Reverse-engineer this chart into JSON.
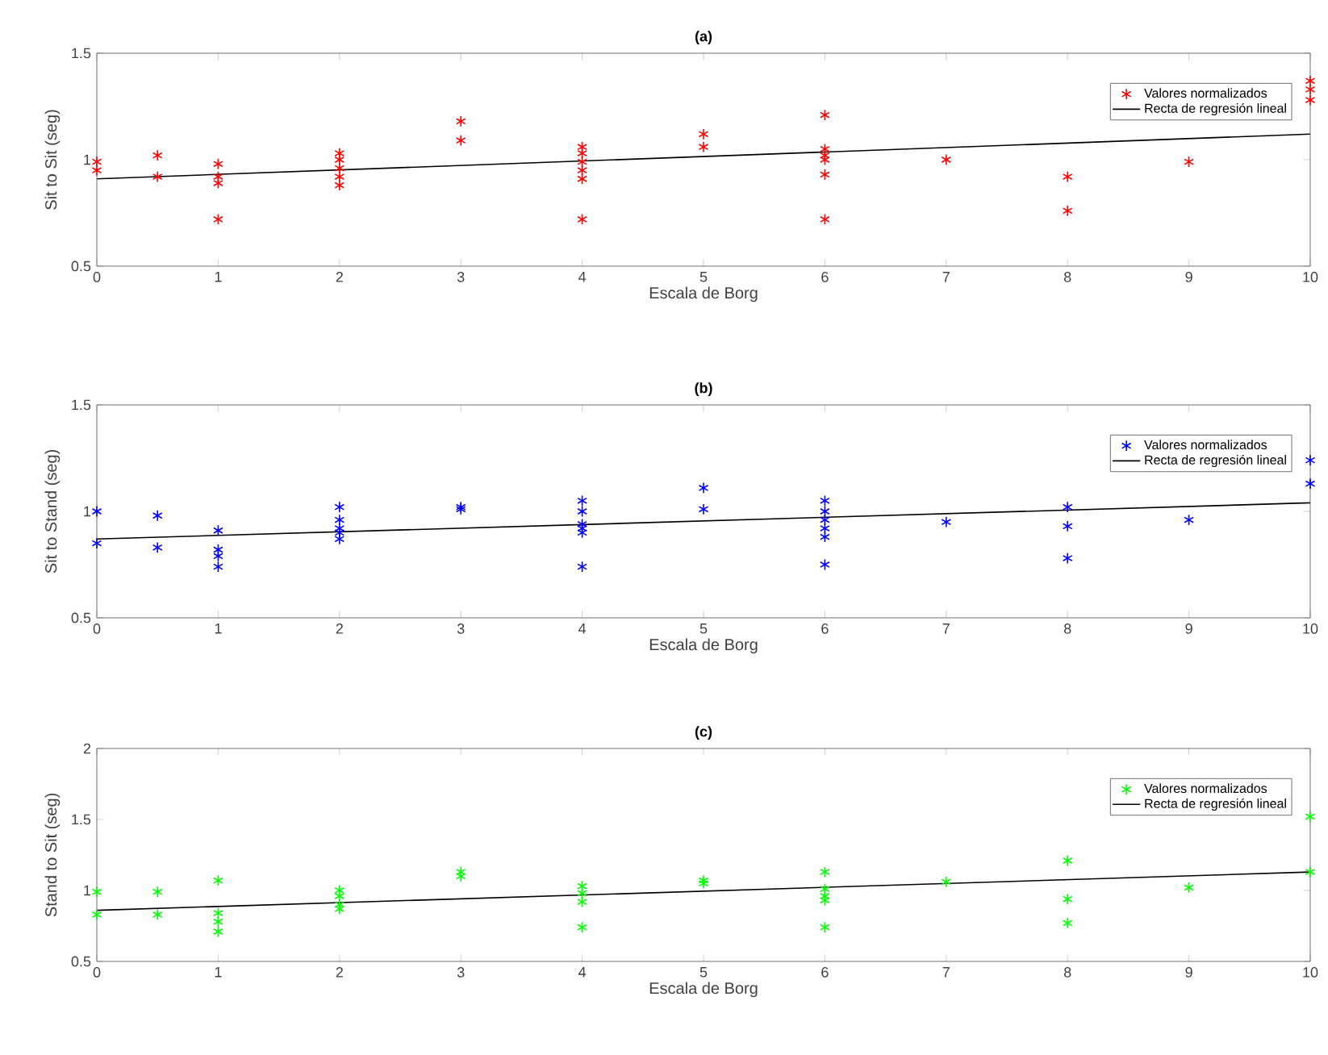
{
  "chart_data": [
    {
      "type": "scatter",
      "title": "**(a)**",
      "xlabel": "Escala de Borg",
      "ylabel": "Sit to Sit (seg)",
      "xlim": [
        0,
        10
      ],
      "ylim": [
        0.5,
        1.5
      ],
      "xticks": [
        0,
        1,
        2,
        3,
        4,
        5,
        6,
        7,
        8,
        9,
        10
      ],
      "yticks": [
        0.5,
        1,
        1.5
      ],
      "legend": "top right",
      "series": [
        {
          "name": "Valores normalizados",
          "marker": "cross",
          "color": "#ff0000",
          "x": [
            0,
            0,
            0.5,
            0.5,
            1,
            1,
            1,
            1,
            2,
            2,
            2,
            2,
            2,
            3,
            3,
            4,
            4,
            4,
            4,
            4,
            4,
            5,
            5,
            6,
            6,
            6,
            6,
            6,
            6,
            7,
            8,
            8,
            9,
            10,
            10,
            10
          ],
          "values": [
            0.99,
            0.95,
            1.02,
            0.92,
            0.98,
            0.92,
            0.89,
            0.72,
            1.03,
            1.0,
            0.96,
            0.92,
            0.88,
            1.18,
            1.09,
            1.06,
            1.03,
            0.99,
            0.95,
            0.91,
            0.72,
            1.12,
            1.06,
            1.21,
            1.05,
            1.02,
            1.0,
            0.93,
            0.72,
            1.0,
            0.92,
            0.76,
            0.99,
            1.37,
            1.33,
            1.28
          ]
        },
        {
          "name": "Recta de regresión lineal",
          "type": "line",
          "color": "#000000",
          "x": [
            0,
            10
          ],
          "values": [
            0.91,
            1.12
          ]
        }
      ]
    },
    {
      "type": "scatter",
      "title": "**(b)**",
      "xlabel": "Escala de Borg",
      "ylabel": "Sit to Stand (seg)",
      "xlim": [
        0,
        10
      ],
      "ylim": [
        0.5,
        1.5
      ],
      "xticks": [
        0,
        1,
        2,
        3,
        4,
        5,
        6,
        7,
        8,
        9,
        10
      ],
      "yticks": [
        0.5,
        1,
        1.5
      ],
      "legend": "top right",
      "series": [
        {
          "name": "Valores normalizados",
          "marker": "cross",
          "color": "#0000ff",
          "x": [
            0,
            0,
            0.5,
            0.5,
            1,
            1,
            1,
            1,
            2,
            2,
            2,
            2,
            2,
            3,
            3,
            4,
            4,
            4,
            4,
            4,
            4,
            5,
            5,
            6,
            6,
            6,
            6,
            6,
            6,
            7,
            8,
            8,
            8,
            9,
            10,
            10
          ],
          "values": [
            1.0,
            0.85,
            0.98,
            0.83,
            0.91,
            0.82,
            0.79,
            0.74,
            1.02,
            0.96,
            0.92,
            0.9,
            0.87,
            1.02,
            1.01,
            1.05,
            1.0,
            0.94,
            0.92,
            0.9,
            0.74,
            1.11,
            1.01,
            1.05,
            1.0,
            0.96,
            0.92,
            0.88,
            0.75,
            0.95,
            1.02,
            0.93,
            0.78,
            0.96,
            1.24,
            1.13
          ]
        },
        {
          "name": "Recta de regresión lineal",
          "type": "line",
          "color": "#000000",
          "x": [
            0,
            10
          ],
          "values": [
            0.87,
            1.04
          ]
        }
      ]
    },
    {
      "type": "scatter",
      "title": "**(c)**",
      "xlabel": "Escala de Borg",
      "ylabel": "Stand to Sit (seg)",
      "xlim": [
        0,
        10
      ],
      "ylim": [
        0.5,
        2
      ],
      "xticks": [
        0,
        1,
        2,
        3,
        4,
        5,
        6,
        7,
        8,
        9,
        10
      ],
      "yticks": [
        0.5,
        1,
        1.5,
        2
      ],
      "legend": "top right",
      "series": [
        {
          "name": "Valores normalizados",
          "marker": "cross",
          "color": "#00ff00",
          "x": [
            0,
            0,
            0.5,
            0.5,
            1,
            1,
            1,
            1,
            2,
            2,
            2,
            2,
            3,
            3,
            4,
            4,
            4,
            4,
            5,
            5,
            6,
            6,
            6,
            6,
            6,
            7,
            8,
            8,
            8,
            9,
            10,
            10
          ],
          "values": [
            0.99,
            0.83,
            0.99,
            0.83,
            1.07,
            0.84,
            0.78,
            0.71,
            1.0,
            0.96,
            0.9,
            0.87,
            1.13,
            1.1,
            1.03,
            0.98,
            0.92,
            0.74,
            1.07,
            1.05,
            1.13,
            1.01,
            0.96,
            0.93,
            0.74,
            1.06,
            1.21,
            0.94,
            0.77,
            1.02,
            1.52,
            1.13
          ]
        },
        {
          "name": "Recta de regresión lineal",
          "type": "line",
          "color": "#000000",
          "x": [
            0,
            10
          ],
          "values": [
            0.86,
            1.13
          ]
        }
      ]
    }
  ]
}
